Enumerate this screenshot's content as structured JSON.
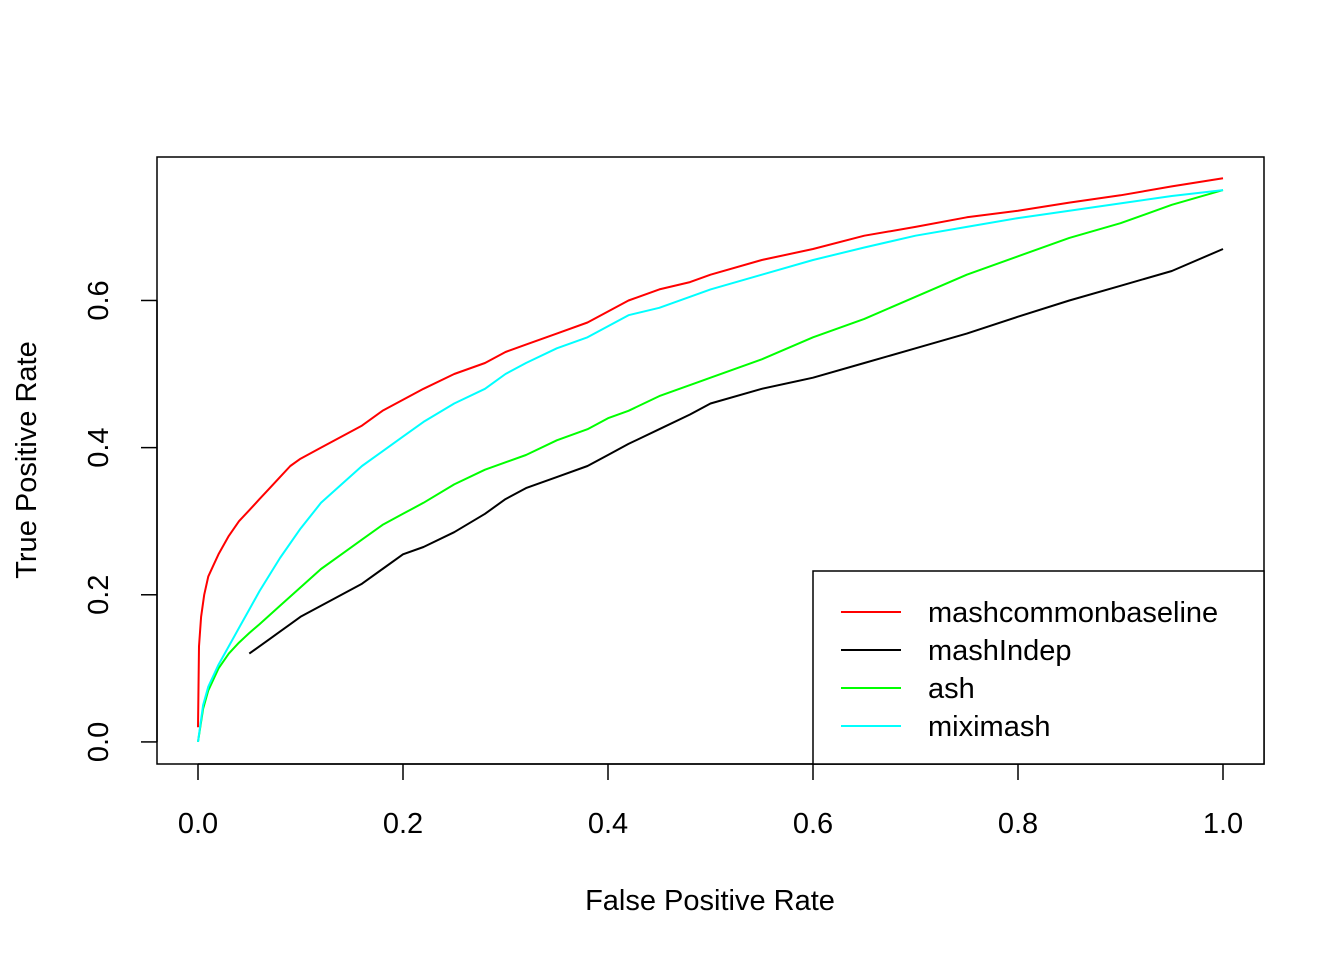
{
  "chart_data": {
    "type": "line",
    "title": "",
    "xlabel": "False Positive Rate",
    "ylabel": "True Positive Rate",
    "xlim": [
      -0.04,
      1.04
    ],
    "ylim": [
      -0.03,
      0.795
    ],
    "x_ticks": [
      0.0,
      0.2,
      0.4,
      0.6,
      0.8,
      1.0
    ],
    "x_tick_labels": [
      "0.0",
      "0.2",
      "0.4",
      "0.6",
      "0.8",
      "1.0"
    ],
    "y_ticks": [
      0.0,
      0.2,
      0.4,
      0.6
    ],
    "y_tick_labels": [
      "0.0",
      "0.2",
      "0.4",
      "0.6"
    ],
    "grid": false,
    "legend_position": "bottom-right",
    "series": [
      {
        "name": "mashcommonbaseline",
        "color": "#FF0000",
        "x": [
          0.0,
          0.001,
          0.003,
          0.006,
          0.01,
          0.015,
          0.02,
          0.03,
          0.04,
          0.05,
          0.06,
          0.07,
          0.08,
          0.09,
          0.1,
          0.12,
          0.14,
          0.16,
          0.18,
          0.2,
          0.22,
          0.25,
          0.28,
          0.3,
          0.32,
          0.35,
          0.38,
          0.4,
          0.42,
          0.45,
          0.48,
          0.5,
          0.55,
          0.6,
          0.65,
          0.7,
          0.75,
          0.8,
          0.85,
          0.9,
          0.95,
          1.0
        ],
        "y": [
          0.02,
          0.13,
          0.17,
          0.2,
          0.225,
          0.24,
          0.255,
          0.28,
          0.3,
          0.315,
          0.33,
          0.345,
          0.36,
          0.375,
          0.385,
          0.4,
          0.415,
          0.43,
          0.45,
          0.465,
          0.48,
          0.5,
          0.515,
          0.53,
          0.54,
          0.555,
          0.57,
          0.585,
          0.6,
          0.615,
          0.625,
          0.635,
          0.655,
          0.67,
          0.688,
          0.7,
          0.713,
          0.722,
          0.733,
          0.743,
          0.755,
          0.766
        ]
      },
      {
        "name": "mashIndep",
        "color": "#000000",
        "x": [
          0.05,
          0.06,
          0.07,
          0.08,
          0.09,
          0.1,
          0.12,
          0.14,
          0.16,
          0.18,
          0.2,
          0.22,
          0.25,
          0.28,
          0.3,
          0.32,
          0.35,
          0.38,
          0.4,
          0.42,
          0.45,
          0.48,
          0.5,
          0.55,
          0.6,
          0.65,
          0.7,
          0.75,
          0.8,
          0.85,
          0.9,
          0.95,
          1.0
        ],
        "y": [
          0.12,
          0.13,
          0.14,
          0.15,
          0.16,
          0.17,
          0.185,
          0.2,
          0.215,
          0.235,
          0.255,
          0.265,
          0.285,
          0.31,
          0.33,
          0.345,
          0.36,
          0.375,
          0.39,
          0.405,
          0.425,
          0.445,
          0.46,
          0.48,
          0.495,
          0.515,
          0.535,
          0.555,
          0.578,
          0.6,
          0.62,
          0.64,
          0.67
        ]
      },
      {
        "name": "ash",
        "color": "#00FF00",
        "x": [
          0.0,
          0.005,
          0.01,
          0.02,
          0.03,
          0.04,
          0.05,
          0.06,
          0.08,
          0.1,
          0.12,
          0.14,
          0.16,
          0.18,
          0.2,
          0.22,
          0.25,
          0.28,
          0.3,
          0.32,
          0.35,
          0.38,
          0.4,
          0.42,
          0.45,
          0.48,
          0.5,
          0.55,
          0.6,
          0.65,
          0.7,
          0.75,
          0.8,
          0.85,
          0.9,
          0.95,
          1.0
        ],
        "y": [
          0.0,
          0.045,
          0.07,
          0.1,
          0.12,
          0.135,
          0.148,
          0.16,
          0.185,
          0.21,
          0.235,
          0.255,
          0.275,
          0.295,
          0.31,
          0.325,
          0.35,
          0.37,
          0.38,
          0.39,
          0.41,
          0.425,
          0.44,
          0.45,
          0.47,
          0.485,
          0.495,
          0.52,
          0.55,
          0.575,
          0.605,
          0.635,
          0.66,
          0.685,
          0.705,
          0.73,
          0.75
        ]
      },
      {
        "name": "miximash",
        "color": "#00FFFF",
        "x": [
          0.0,
          0.005,
          0.01,
          0.02,
          0.03,
          0.04,
          0.05,
          0.06,
          0.08,
          0.1,
          0.12,
          0.14,
          0.16,
          0.18,
          0.2,
          0.22,
          0.25,
          0.28,
          0.3,
          0.32,
          0.35,
          0.38,
          0.4,
          0.42,
          0.45,
          0.48,
          0.5,
          0.55,
          0.6,
          0.65,
          0.7,
          0.75,
          0.8,
          0.85,
          0.9,
          0.95,
          1.0
        ],
        "y": [
          0.0,
          0.05,
          0.075,
          0.105,
          0.13,
          0.155,
          0.18,
          0.205,
          0.25,
          0.29,
          0.325,
          0.35,
          0.375,
          0.395,
          0.415,
          0.435,
          0.46,
          0.48,
          0.5,
          0.515,
          0.535,
          0.55,
          0.565,
          0.58,
          0.59,
          0.605,
          0.615,
          0.635,
          0.655,
          0.672,
          0.688,
          0.7,
          0.712,
          0.722,
          0.732,
          0.742,
          0.75
        ]
      }
    ]
  }
}
